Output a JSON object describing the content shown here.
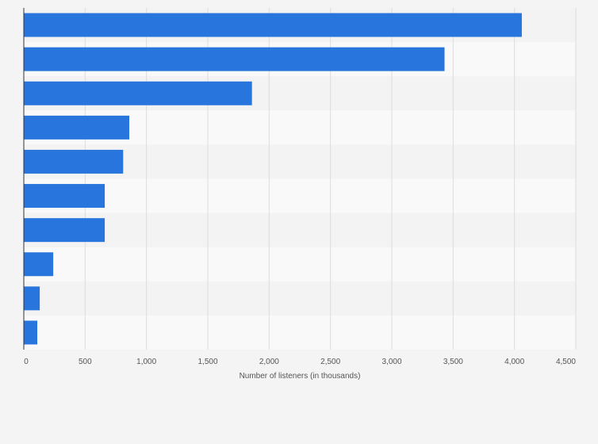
{
  "chart_data": {
    "type": "bar",
    "orientation": "horizontal",
    "categories": [
      "",
      "",
      "",
      "",
      "",
      "",
      "",
      "",
      "",
      ""
    ],
    "values": [
      4060,
      3430,
      1860,
      860,
      810,
      660,
      660,
      240,
      130,
      110
    ],
    "xlabel": "Number of listeners (in thousands)",
    "ylabel": "",
    "xlim": [
      0,
      4500
    ],
    "xticks": [
      0,
      500,
      1000,
      1500,
      2000,
      2500,
      3000,
      3500,
      4000,
      4500
    ],
    "xtick_labels": [
      "0",
      "500",
      "1,000",
      "1,500",
      "2,000",
      "2,500",
      "3,000",
      "3,500",
      "4,000",
      "4,500"
    ],
    "grid": "vertical",
    "legend": "none"
  },
  "colors": {
    "bar": "#2876dd",
    "background": "#f4f4f4",
    "band_light": "#f9f9f9",
    "band_dark": "#f3f3f3",
    "grid": "#dddddd",
    "axis": "#333333"
  }
}
